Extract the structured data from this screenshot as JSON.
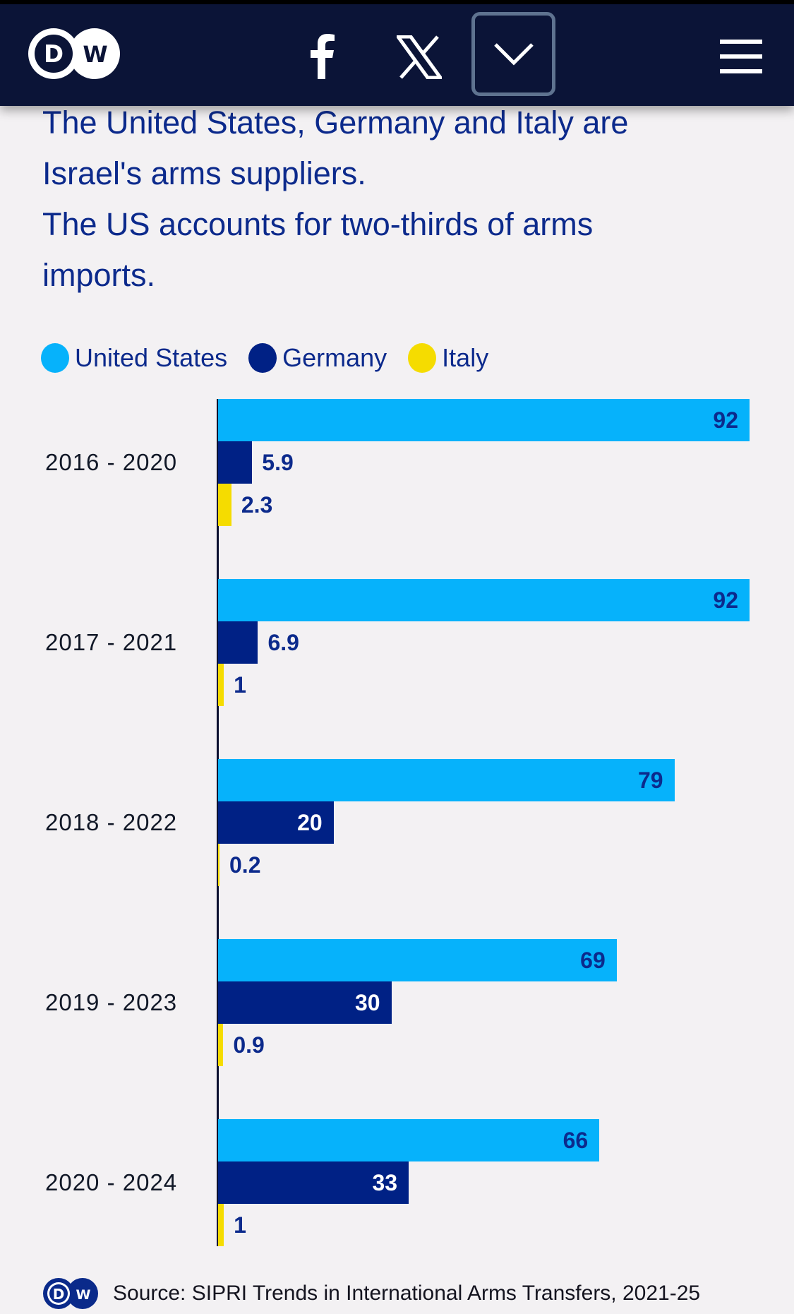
{
  "header": {
    "logo_label": "DW",
    "icons": [
      "facebook-icon",
      "x-icon",
      "chevron-down-icon",
      "hamburger-menu-icon"
    ]
  },
  "headline": {
    "lines": [
      "The United States, Germany and Italy are",
      "Israel's arms suppliers.",
      "The US accounts for two-thirds of arms",
      "imports."
    ]
  },
  "colors": {
    "united_states": "#06b2fb",
    "germany": "#002185",
    "italy": "#f5dc00",
    "label_dark": "#0c2a8c",
    "label_light": "#ffffff"
  },
  "chart_data": {
    "type": "bar",
    "orientation": "horizontal",
    "title": "The United States, Germany and Italy are Israel's arms suppliers. The US accounts for two-thirds of arms imports.",
    "xlabel": "",
    "ylabel": "",
    "xlim": [
      0,
      92
    ],
    "grid": false,
    "legend_position": "top-left",
    "categories": [
      "2016 - 2020",
      "2017 - 2021",
      "2018 - 2022",
      "2019 - 2023",
      "2020 - 2024"
    ],
    "series": [
      {
        "name": "United States",
        "values": [
          92,
          92,
          79,
          69,
          66
        ],
        "labels": [
          "92",
          "92",
          "79",
          "69",
          "66"
        ]
      },
      {
        "name": "Germany",
        "values": [
          5.9,
          6.9,
          20,
          30,
          33
        ],
        "labels": [
          "5.9",
          "6.9",
          "20",
          "30",
          "33"
        ]
      },
      {
        "name": "Italy",
        "values": [
          2.3,
          1,
          0.2,
          0.9,
          1
        ],
        "labels": [
          "2.3",
          "1",
          "0.2",
          "0.9",
          "1"
        ]
      }
    ]
  },
  "footer": {
    "source": "Source: SIPRI Trends in International Arms Transfers, 2021-25"
  }
}
